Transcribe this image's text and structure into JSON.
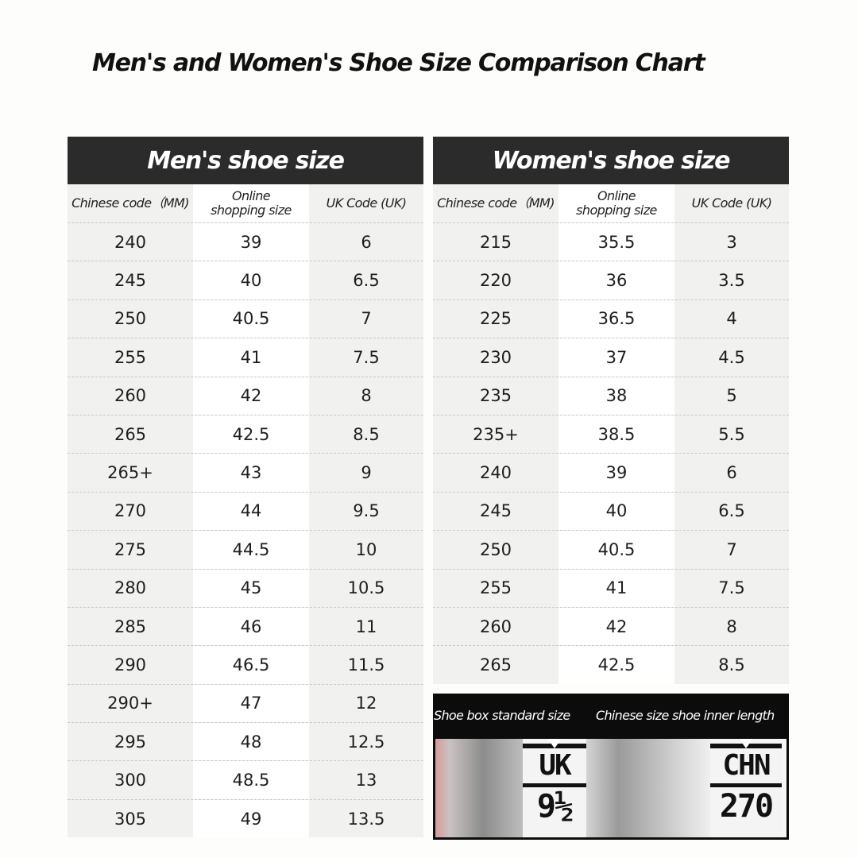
{
  "title": "Men's and Women's Shoe Size Comparison Chart",
  "men": {
    "header": "Men's shoe size",
    "columns": [
      "Chinese code（MM)",
      "Online\nshopping size",
      "UK Code (UK)"
    ],
    "rows": [
      [
        "240",
        "39",
        "6"
      ],
      [
        "245",
        "40",
        "6.5"
      ],
      [
        "250",
        "40.5",
        "7"
      ],
      [
        "255",
        "41",
        "7.5"
      ],
      [
        "260",
        "42",
        "8"
      ],
      [
        "265",
        "42.5",
        "8.5"
      ],
      [
        "265+",
        "43",
        "9"
      ],
      [
        "270",
        "44",
        "9.5"
      ],
      [
        "275",
        "44.5",
        "10"
      ],
      [
        "280",
        "45",
        "10.5"
      ],
      [
        "285",
        "46",
        "11"
      ],
      [
        "290",
        "46.5",
        "11.5"
      ],
      [
        "290+",
        "47",
        "12"
      ],
      [
        "295",
        "48",
        "12.5"
      ],
      [
        "300",
        "48.5",
        "13"
      ],
      [
        "305",
        "49",
        "13.5"
      ]
    ]
  },
  "women": {
    "header": "Women's shoe size",
    "columns": [
      "Chinese code（MM)",
      "Online\nshopping size",
      "UK Code (UK)"
    ],
    "rows": [
      [
        "215",
        "35.5",
        "3"
      ],
      [
        "220",
        "36",
        "3.5"
      ],
      [
        "225",
        "36.5",
        "4"
      ],
      [
        "230",
        "37",
        "4.5"
      ],
      [
        "235",
        "38",
        "5"
      ],
      [
        "235+",
        "38.5",
        "5.5"
      ],
      [
        "240",
        "39",
        "6"
      ],
      [
        "245",
        "40",
        "6.5"
      ],
      [
        "250",
        "40.5",
        "7"
      ],
      [
        "255",
        "41",
        "7.5"
      ],
      [
        "260",
        "42",
        "8"
      ],
      [
        "265",
        "42.5",
        "8.5"
      ]
    ]
  },
  "label": {
    "caption_left": "Shoe box standard size",
    "caption_right": "Chinese size shoe inner length",
    "tag_left_code": "UK",
    "tag_left_value": "9½",
    "tag_right_code": "CHN",
    "tag_right_value": "270"
  }
}
